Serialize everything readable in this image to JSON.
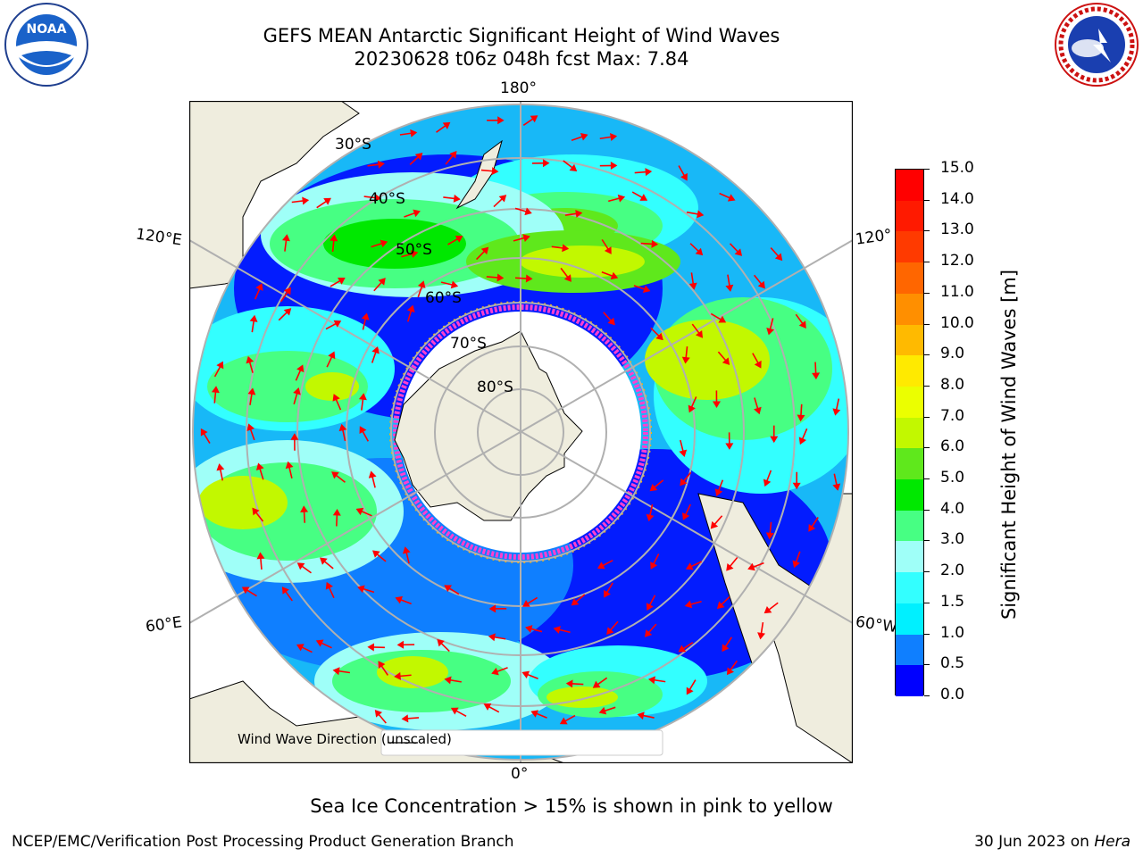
{
  "title": "GEFS MEAN Antarctic Significant Height of Wind Waves",
  "subtitle": "20230628 t06z 048h fcst   Max: 7.84",
  "logos": {
    "left": {
      "name": "noaa-logo",
      "text": "NOAA",
      "ring_text": "NATIONAL OCEANIC AND ATMOSPHERIC ADMINISTRATION · U.S. DEPARTMENT OF COMMERCE"
    },
    "right": {
      "name": "nws-logo",
      "ring_text": "NATIONAL WEATHER SERVICE"
    }
  },
  "map": {
    "projection": "south-polar-stereographic",
    "longitude_labels": {
      "top": "180°",
      "bottom": "0°",
      "left_upper": "120°E",
      "left_lower": "60°E",
      "right_upper": "120°",
      "right_lower": "60°W"
    },
    "latitude_labels": [
      "30°S",
      "40°S",
      "50°S",
      "60°S",
      "70°S",
      "80°S"
    ],
    "legend": "Wind Wave Direction (unscaled)",
    "colors": {
      "land": "#efedde",
      "ice_edge": "#ff3fd0",
      "arrows": "#ff0000",
      "grid": "#b0b0b0"
    }
  },
  "colorbar": {
    "label": "Significant Height of Wind Waves [m]",
    "ticks": [
      "0.0",
      "0.5",
      "1.0",
      "1.5",
      "2.0",
      "3.0",
      "4.0",
      "5.0",
      "6.0",
      "7.0",
      "8.0",
      "9.0",
      "10.0",
      "11.0",
      "12.0",
      "13.0",
      "14.0",
      "15.0"
    ],
    "colors": [
      "#0000ff",
      "#0f7fff",
      "#00f0ff",
      "#33ffff",
      "#9ffff8",
      "#47ff83",
      "#00e800",
      "#5fe81c",
      "#c2f800",
      "#ebff00",
      "#ffea00",
      "#ffba00",
      "#ff8f00",
      "#ff6600",
      "#ff3a00",
      "#ff1a00",
      "#ff0000"
    ]
  },
  "footer": {
    "note": "Sea Ice Concentration > 15% is shown in pink to yellow",
    "left": "NCEP/EMC/Verification Post Processing Product Generation Branch",
    "right_prefix": "30 Jun 2023 on ",
    "right_machine": "Hera"
  }
}
